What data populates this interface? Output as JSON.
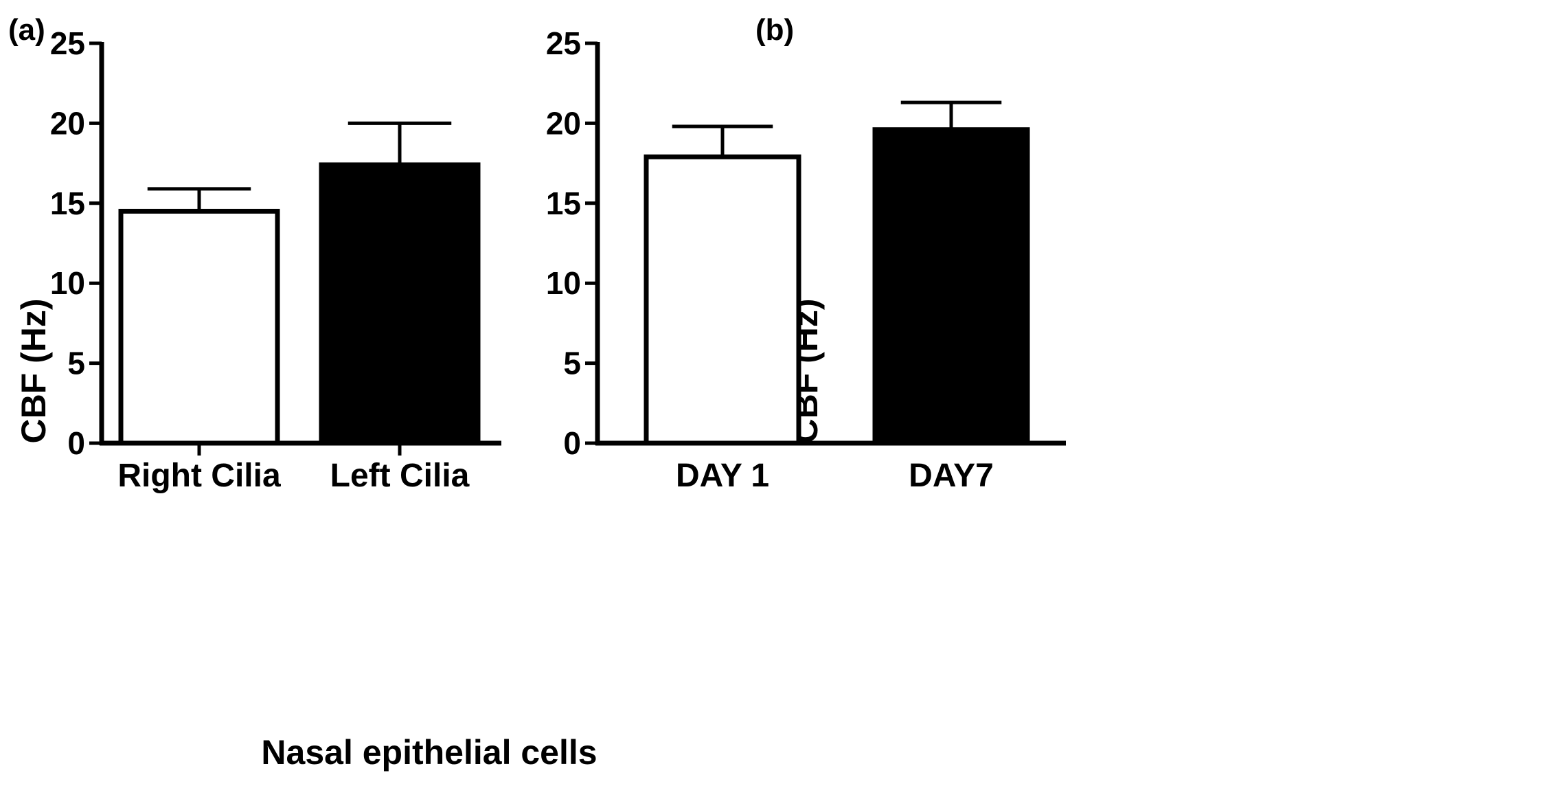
{
  "chart_data": [
    {
      "panel": "(a)",
      "type": "bar",
      "categories": [
        "Right Cilia",
        "Left Cilia"
      ],
      "values": [
        14.5,
        17.4
      ],
      "errors": [
        1.4,
        2.6
      ],
      "fills": [
        "#ffffff",
        "#000000"
      ],
      "ylabel": "CBF (Hz)",
      "xlabel": "Nasal epithelial cells",
      "ylim": [
        0,
        25
      ],
      "yticks": [
        0,
        5,
        10,
        15,
        20,
        25
      ],
      "ytick_labels": [
        "0",
        "5",
        "10",
        "15",
        "20",
        "25"
      ],
      "grid": false
    },
    {
      "panel": "(b)",
      "type": "bar",
      "categories": [
        "DAY 1",
        "DAY7"
      ],
      "values": [
        17.9,
        19.6
      ],
      "errors": [
        1.9,
        1.7
      ],
      "fills": [
        "#ffffff",
        "#000000"
      ],
      "ylabel": "CBF (Hz)",
      "xlabel": "",
      "ylim": [
        0,
        25
      ],
      "yticks": [
        0,
        5,
        10,
        15,
        20,
        25
      ],
      "ytick_labels": [
        "0",
        "5",
        "10",
        "15",
        "20",
        "25"
      ],
      "grid": false
    }
  ]
}
